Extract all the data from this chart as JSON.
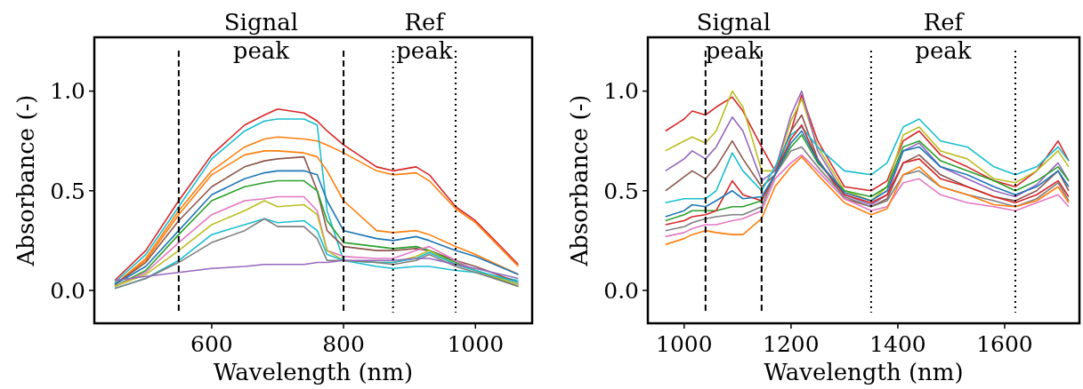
{
  "chart_data": [
    {
      "type": "line",
      "xlabel": "Wavelength (nm)",
      "ylabel": "Absorbance (-)",
      "xlim": [
        422,
        1086
      ],
      "ylim": [
        -0.165,
        1.27
      ],
      "xticks": [
        600,
        800,
        1000
      ],
      "yticks": [
        {
          "value": 0,
          "label": "0.0"
        },
        {
          "value": 0.5,
          "label": "0.5"
        },
        {
          "value": 1,
          "label": "1.0"
        }
      ],
      "x": [
        453,
        500,
        550,
        600,
        650,
        680,
        700,
        740,
        760,
        775,
        800,
        850,
        875,
        910,
        930,
        970,
        1000,
        1065
      ],
      "series": [
        {
          "color": "#d62728",
          "values": [
            0.05,
            0.2,
            0.45,
            0.68,
            0.83,
            0.88,
            0.91,
            0.89,
            0.85,
            0.8,
            0.73,
            0.62,
            0.6,
            0.62,
            0.58,
            0.42,
            0.35,
            0.13
          ]
        },
        {
          "color": "#ff7f0e",
          "values": [
            0.03,
            0.16,
            0.4,
            0.6,
            0.72,
            0.76,
            0.77,
            0.76,
            0.75,
            0.73,
            0.69,
            0.6,
            0.58,
            0.59,
            0.55,
            0.41,
            0.34,
            0.12
          ]
        },
        {
          "color": "#17becf",
          "values": [
            0.04,
            0.18,
            0.42,
            0.66,
            0.8,
            0.85,
            0.86,
            0.86,
            0.83,
            0.4,
            0.15,
            0.12,
            0.11,
            0.12,
            0.12,
            0.1,
            0.09,
            0.05
          ]
        },
        {
          "color": "#ff7f0e",
          "values": [
            0.03,
            0.15,
            0.38,
            0.58,
            0.68,
            0.7,
            0.7,
            0.69,
            0.67,
            0.6,
            0.45,
            0.3,
            0.29,
            0.3,
            0.28,
            0.22,
            0.18,
            0.08
          ]
        },
        {
          "color": "#8c564b",
          "values": [
            0.03,
            0.14,
            0.35,
            0.52,
            0.62,
            0.65,
            0.66,
            0.67,
            0.5,
            0.3,
            0.22,
            0.2,
            0.2,
            0.21,
            0.2,
            0.15,
            0.12,
            0.04
          ]
        },
        {
          "color": "#1f77b4",
          "values": [
            0.03,
            0.12,
            0.3,
            0.48,
            0.56,
            0.59,
            0.6,
            0.6,
            0.58,
            0.45,
            0.3,
            0.26,
            0.25,
            0.27,
            0.25,
            0.2,
            0.17,
            0.08
          ]
        },
        {
          "color": "#2ca02c",
          "values": [
            0.02,
            0.1,
            0.28,
            0.45,
            0.52,
            0.54,
            0.55,
            0.55,
            0.5,
            0.35,
            0.24,
            0.22,
            0.21,
            0.22,
            0.2,
            0.14,
            0.1,
            0.02
          ]
        },
        {
          "color": "#e377c2",
          "values": [
            0.02,
            0.09,
            0.24,
            0.38,
            0.45,
            0.46,
            0.47,
            0.47,
            0.4,
            0.2,
            0.17,
            0.16,
            0.16,
            0.2,
            0.22,
            0.15,
            0.1,
            0.03
          ]
        },
        {
          "color": "#bcbd22",
          "values": [
            0.02,
            0.08,
            0.2,
            0.33,
            0.4,
            0.45,
            0.42,
            0.43,
            0.38,
            0.2,
            0.15,
            0.14,
            0.14,
            0.17,
            0.2,
            0.13,
            0.1,
            0.03
          ]
        },
        {
          "color": "#17becf",
          "values": [
            0.01,
            0.06,
            0.15,
            0.28,
            0.33,
            0.36,
            0.34,
            0.35,
            0.3,
            0.18,
            0.15,
            0.14,
            0.14,
            0.16,
            0.19,
            0.13,
            0.1,
            0.04
          ]
        },
        {
          "color": "#7f7f7f",
          "values": [
            0.01,
            0.06,
            0.14,
            0.24,
            0.3,
            0.36,
            0.32,
            0.32,
            0.26,
            0.15,
            0.15,
            0.14,
            0.13,
            0.15,
            0.18,
            0.12,
            0.09,
            0.02
          ]
        },
        {
          "color": "#9467bd",
          "values": [
            0.05,
            0.07,
            0.09,
            0.11,
            0.12,
            0.13,
            0.13,
            0.13,
            0.14,
            0.14,
            0.15,
            0.15,
            0.15,
            0.16,
            0.16,
            0.13,
            0.11,
            0.06
          ]
        }
      ],
      "ref_lines": [
        {
          "axis": "x",
          "value": 550,
          "line_style": "dashed"
        },
        {
          "axis": "x",
          "value": 800,
          "line_style": "dashed"
        },
        {
          "axis": "x",
          "value": 875,
          "line_style": "dotted"
        },
        {
          "axis": "x",
          "value": 970,
          "line_style": "dotted"
        }
      ],
      "annotations": [
        "Signal\npeak",
        "Ref\npeak"
      ]
    },
    {
      "type": "line",
      "xlabel": "Wavelength (nm)",
      "ylabel": "Absorbance (-)",
      "xlim": [
        932,
        1740
      ],
      "ylim": [
        -0.165,
        1.27
      ],
      "xticks": [
        1000,
        1200,
        1400,
        1600
      ],
      "yticks": [
        {
          "value": 0,
          "label": "0.0"
        },
        {
          "value": 0.5,
          "label": "0.5"
        },
        {
          "value": 1,
          "label": "1.0"
        }
      ],
      "x": [
        965,
        1000,
        1015,
        1040,
        1060,
        1090,
        1110,
        1145,
        1170,
        1200,
        1220,
        1250,
        1300,
        1350,
        1380,
        1410,
        1440,
        1480,
        1530,
        1580,
        1620,
        1660,
        1700,
        1720
      ],
      "series": [
        {
          "color": "#d62728",
          "values": [
            0.8,
            0.86,
            0.9,
            0.88,
            0.92,
            0.97,
            0.9,
            0.72,
            0.6,
            0.8,
            0.98,
            0.75,
            0.52,
            0.5,
            0.55,
            0.75,
            0.8,
            0.68,
            0.62,
            0.55,
            0.52,
            0.6,
            0.75,
            0.65
          ]
        },
        {
          "color": "#bcbd22",
          "values": [
            0.7,
            0.75,
            0.77,
            0.74,
            0.8,
            1.0,
            0.92,
            0.6,
            0.6,
            0.85,
            0.96,
            0.72,
            0.5,
            0.45,
            0.52,
            0.78,
            0.82,
            0.7,
            0.66,
            0.56,
            0.54,
            0.6,
            0.7,
            0.62
          ]
        },
        {
          "color": "#9467bd",
          "values": [
            0.6,
            0.66,
            0.7,
            0.66,
            0.72,
            0.87,
            0.8,
            0.55,
            0.6,
            0.88,
            1.0,
            0.7,
            0.48,
            0.43,
            0.48,
            0.7,
            0.74,
            0.62,
            0.56,
            0.5,
            0.47,
            0.53,
            0.64,
            0.55
          ]
        },
        {
          "color": "#8c564b",
          "values": [
            0.5,
            0.57,
            0.6,
            0.56,
            0.62,
            0.75,
            0.66,
            0.52,
            0.58,
            0.8,
            0.88,
            0.66,
            0.46,
            0.42,
            0.46,
            0.64,
            0.68,
            0.58,
            0.52,
            0.47,
            0.45,
            0.5,
            0.6,
            0.5
          ]
        },
        {
          "color": "#17becf",
          "values": [
            0.44,
            0.46,
            0.46,
            0.46,
            0.5,
            0.69,
            0.6,
            0.5,
            0.62,
            0.78,
            0.82,
            0.72,
            0.6,
            0.58,
            0.64,
            0.82,
            0.86,
            0.75,
            0.72,
            0.62,
            0.58,
            0.62,
            0.72,
            0.65
          ]
        },
        {
          "color": "#2ca02c",
          "values": [
            0.35,
            0.38,
            0.4,
            0.4,
            0.4,
            0.42,
            0.42,
            0.45,
            0.58,
            0.72,
            0.78,
            0.64,
            0.5,
            0.47,
            0.52,
            0.72,
            0.75,
            0.65,
            0.6,
            0.55,
            0.5,
            0.55,
            0.62,
            0.55
          ]
        },
        {
          "color": "#d62728",
          "values": [
            0.33,
            0.35,
            0.37,
            0.38,
            0.4,
            0.55,
            0.48,
            0.45,
            0.58,
            0.76,
            0.83,
            0.65,
            0.48,
            0.44,
            0.48,
            0.64,
            0.66,
            0.56,
            0.52,
            0.47,
            0.44,
            0.48,
            0.55,
            0.47
          ]
        },
        {
          "color": "#7f7f7f",
          "values": [
            0.3,
            0.32,
            0.34,
            0.36,
            0.37,
            0.38,
            0.38,
            0.42,
            0.58,
            0.7,
            0.72,
            0.62,
            0.47,
            0.42,
            0.45,
            0.58,
            0.6,
            0.52,
            0.48,
            0.45,
            0.42,
            0.46,
            0.54,
            0.45
          ]
        },
        {
          "color": "#e377c2",
          "values": [
            0.27,
            0.29,
            0.31,
            0.33,
            0.33,
            0.35,
            0.36,
            0.4,
            0.56,
            0.64,
            0.68,
            0.6,
            0.46,
            0.4,
            0.42,
            0.54,
            0.56,
            0.48,
            0.44,
            0.42,
            0.4,
            0.44,
            0.48,
            0.42
          ]
        },
        {
          "color": "#ff7f0e",
          "values": [
            0.23,
            0.26,
            0.28,
            0.3,
            0.29,
            0.28,
            0.28,
            0.36,
            0.52,
            0.62,
            0.67,
            0.58,
            0.44,
            0.38,
            0.41,
            0.58,
            0.62,
            0.52,
            0.48,
            0.43,
            0.42,
            0.45,
            0.52,
            0.44
          ]
        },
        {
          "color": "#1f77b4",
          "values": [
            0.37,
            0.4,
            0.43,
            0.42,
            0.45,
            0.5,
            0.46,
            0.47,
            0.58,
            0.74,
            0.8,
            0.65,
            0.49,
            0.45,
            0.5,
            0.7,
            0.72,
            0.62,
            0.58,
            0.52,
            0.48,
            0.52,
            0.6,
            0.52
          ]
        }
      ],
      "ref_lines": [
        {
          "axis": "x",
          "value": 1040,
          "line_style": "dashed"
        },
        {
          "axis": "x",
          "value": 1145,
          "line_style": "dashed"
        },
        {
          "axis": "x",
          "value": 1350,
          "line_style": "dotted"
        },
        {
          "axis": "x",
          "value": 1620,
          "line_style": "dotted"
        }
      ],
      "annotations": [
        "Signal\npeak",
        "Ref\npeak"
      ]
    }
  ]
}
